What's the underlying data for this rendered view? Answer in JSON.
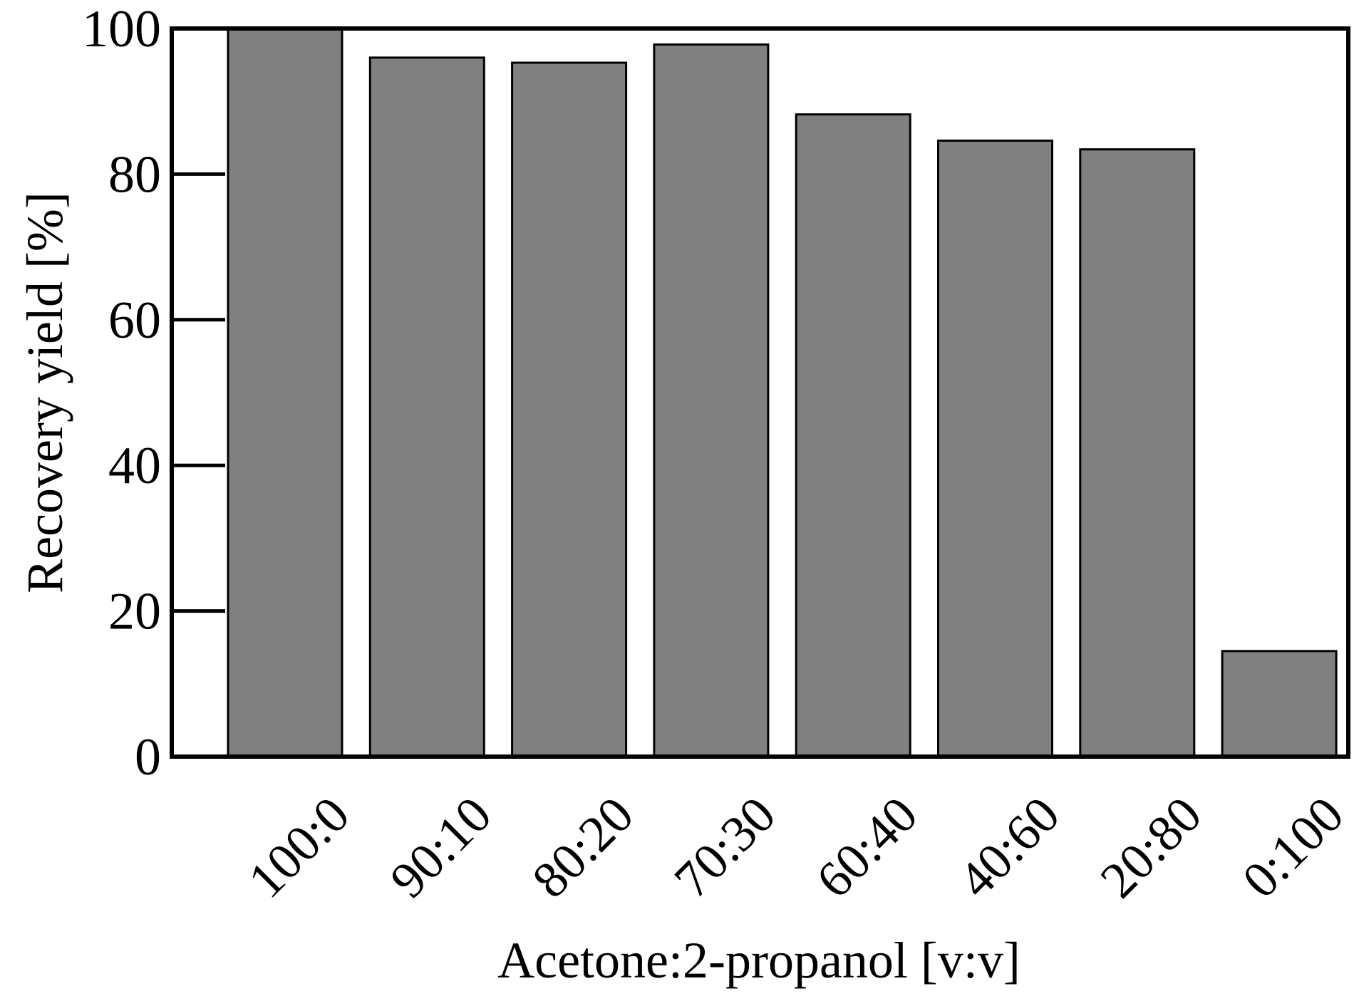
{
  "chart_data": {
    "type": "bar",
    "categories": [
      "100:0",
      "90:10",
      "80:20",
      "70:30",
      "60:40",
      "40:60",
      "20:80",
      "0:100"
    ],
    "values": [
      100,
      96,
      95.3,
      97.8,
      88.2,
      84.6,
      83.4,
      14.5
    ],
    "xlabel": "Acetone:2-propanol [v:v]",
    "ylabel": "Recovery yield [%]",
    "ylim": [
      0,
      100
    ],
    "yticks": [
      0,
      20,
      40,
      60,
      80,
      100
    ],
    "grid": false,
    "bar_color": "#808080",
    "edge_color": "#000000"
  }
}
